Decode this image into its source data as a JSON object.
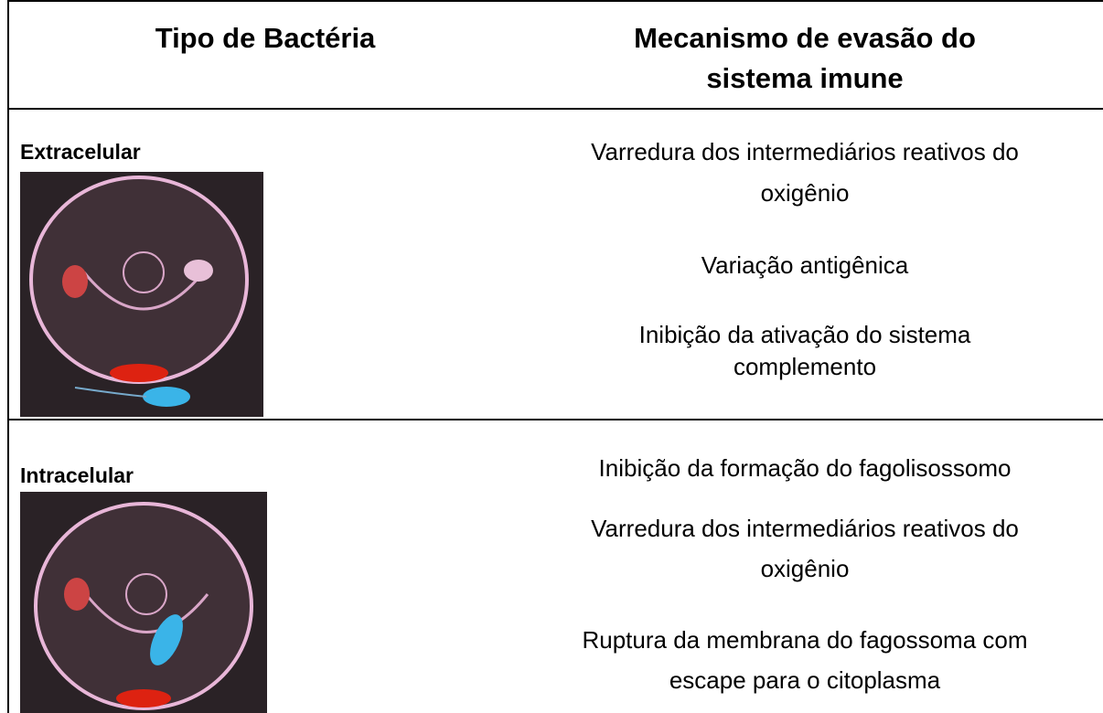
{
  "table": {
    "header": [
      "Tipo de Bactéria",
      [
        "Mecanismo de evasão do",
        "sistema imune"
      ]
    ],
    "rows": [
      {
        "type": "Extracelular",
        "mechanisms": [
          [
            "Varredura dos intermediários reativos do",
            "oxigênio"
          ],
          [
            "Variação antigênica"
          ],
          [
            "Inibição da ativação do sistema",
            "complemento"
          ]
        ]
      },
      {
        "type": "Intracelular",
        "mechanisms": [
          [
            "Inibição da formação do fagolisossomo"
          ],
          [
            "Varredura dos intermediários reativos do",
            "oxigênio"
          ],
          [
            "Ruptura da membrana do fagossoma com",
            "escape para o citoplasma"
          ]
        ]
      }
    ]
  }
}
